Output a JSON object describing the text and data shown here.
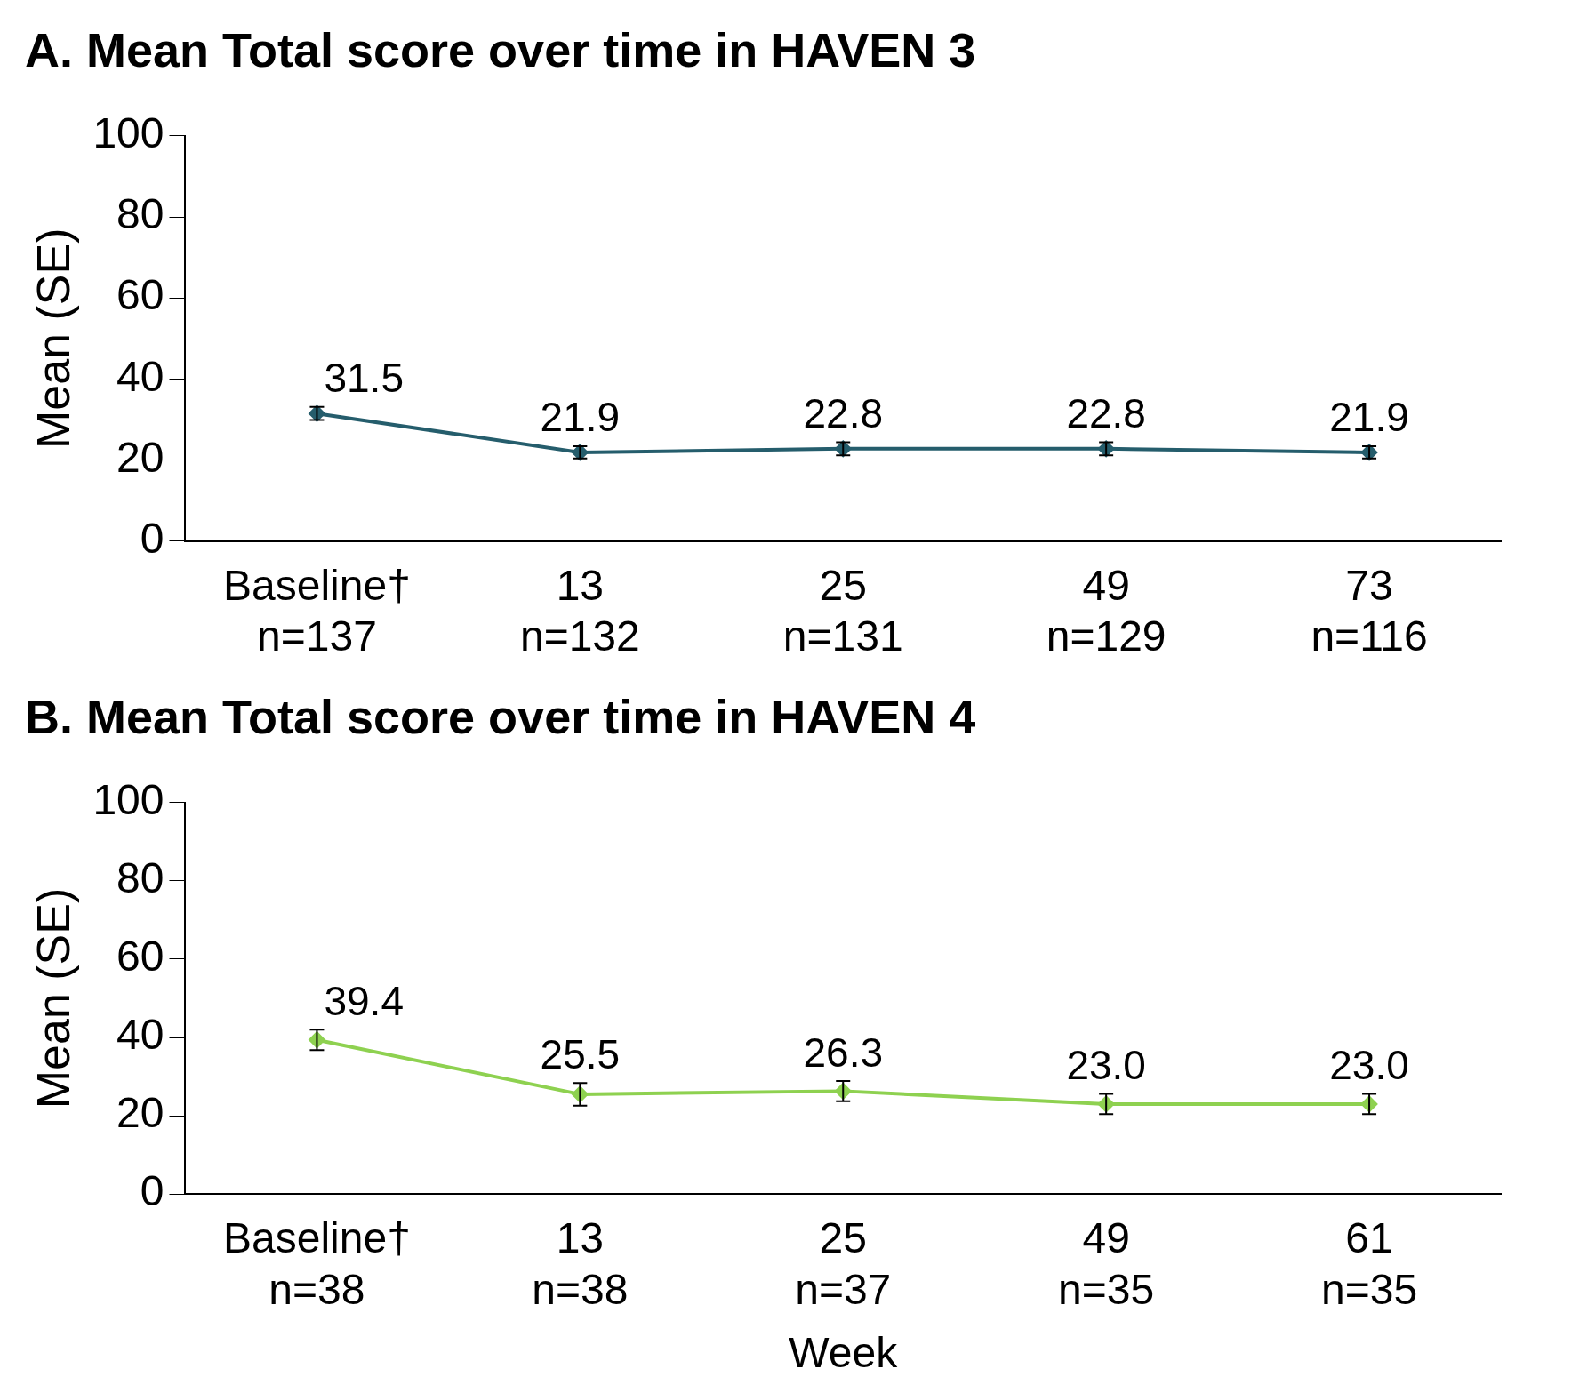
{
  "chart_data": [
    {
      "type": "line",
      "title": "A. Mean Total score over time in HAVEN 3",
      "ylabel": "Mean (SE)",
      "categories": [
        "Baseline†\nn=137",
        "13\nn=132",
        "25\nn=131",
        "49\nn=129",
        "73\nn=116"
      ],
      "series": [
        {
          "color": "#255d6c",
          "values": [
            31.5,
            21.9,
            22.8,
            22.8,
            21.9
          ],
          "errors": [
            1.6,
            1.5,
            1.6,
            1.6,
            1.5
          ],
          "value_labels": [
            "31.5",
            "21.9",
            "22.8",
            "22.8",
            "21.9"
          ]
        }
      ],
      "ylim": [
        0,
        100
      ],
      "yticks": [
        0,
        20,
        40,
        60,
        80,
        100
      ],
      "grid": false,
      "legend": false,
      "marker": "diamond"
    },
    {
      "type": "line",
      "title": "B. Mean Total score over time in HAVEN 4",
      "xlabel": "Week",
      "ylabel": "Mean (SE)",
      "categories": [
        "Baseline†\nn=38",
        "13\nn=38",
        "25\nn=37",
        "49\nn=35",
        "61\nn=35"
      ],
      "series": [
        {
          "color": "#8ed150",
          "values": [
            39.4,
            25.5,
            26.3,
            23.0,
            23.0
          ],
          "errors": [
            2.6,
            2.9,
            2.6,
            2.6,
            2.6
          ],
          "value_labels": [
            "39.4",
            "25.5",
            "26.3",
            "23.0",
            "23.0"
          ]
        }
      ],
      "ylim": [
        0,
        100
      ],
      "yticks": [
        0,
        20,
        40,
        60,
        80,
        100
      ],
      "grid": false,
      "legend": false,
      "marker": "diamond"
    }
  ]
}
